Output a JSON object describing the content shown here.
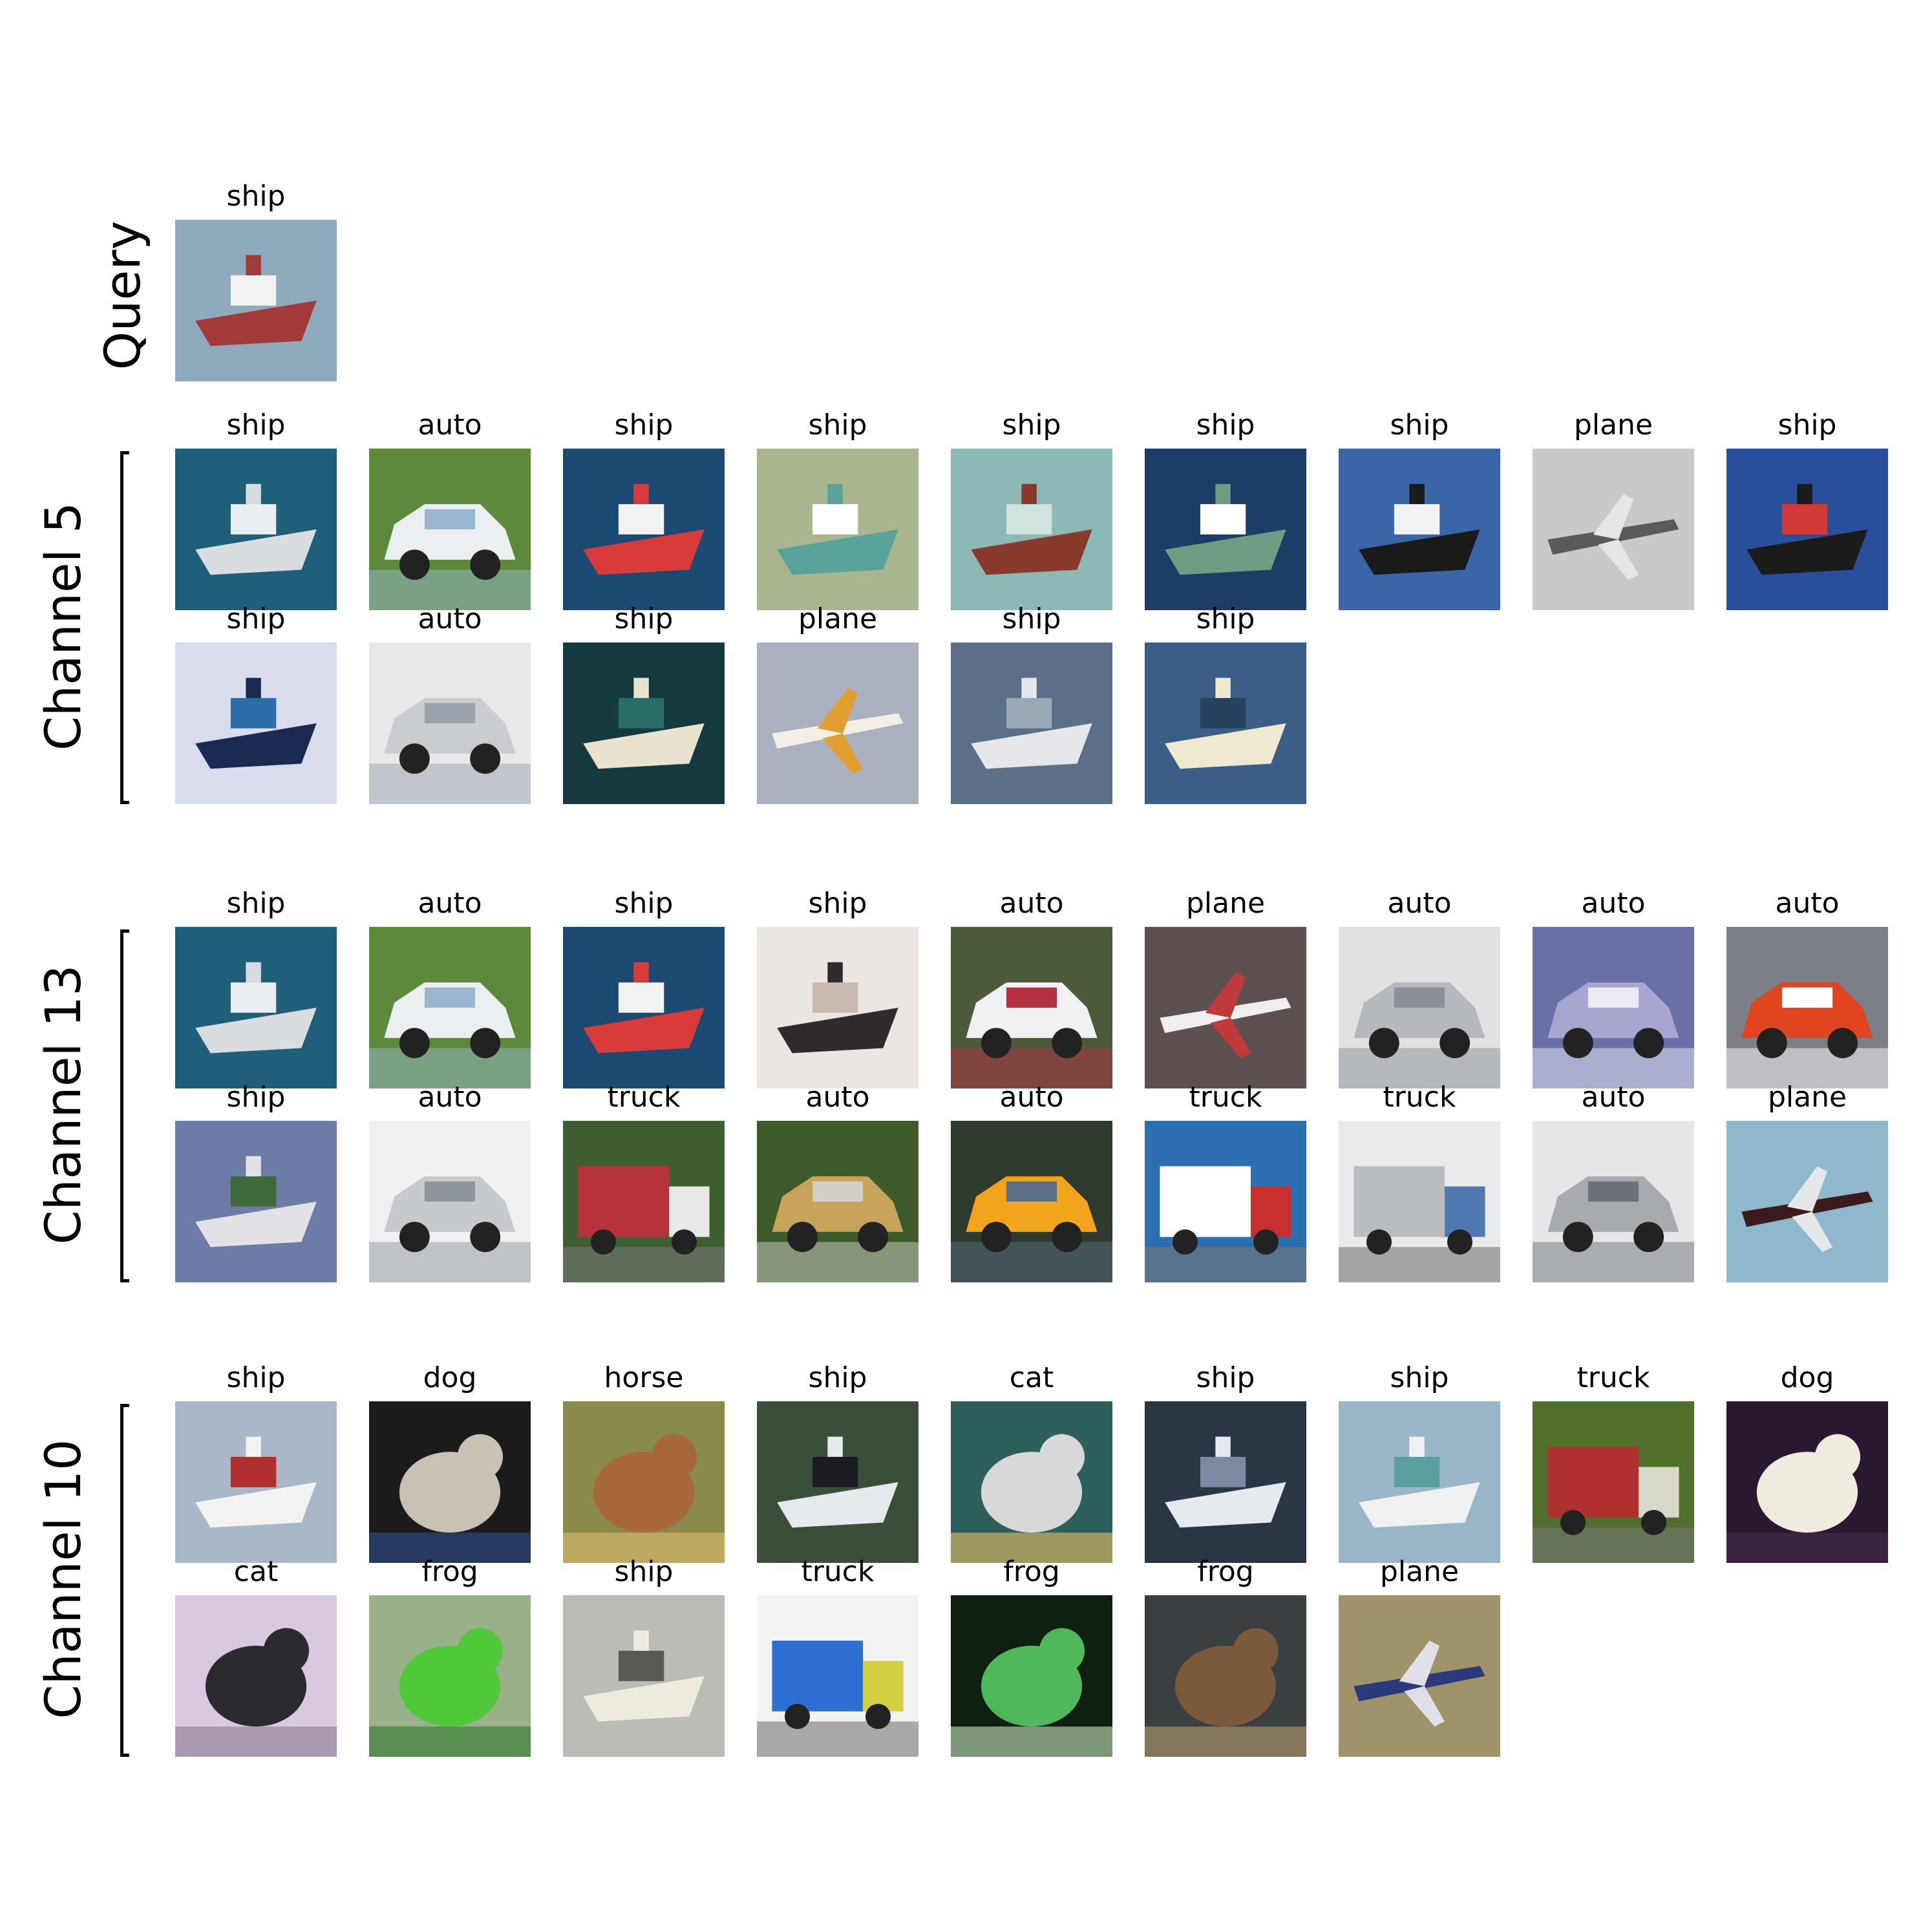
{
  "query": {
    "row_label": "Query",
    "image": {
      "label": "ship",
      "kind": "ship",
      "colors": [
        "#8fa9bd",
        "#a23a3a",
        "#f2f2f2"
      ]
    }
  },
  "groups": [
    {
      "row_label": "Channel 5",
      "images": [
        {
          "label": "ship",
          "kind": "ship",
          "colors": [
            "#1f5f7a",
            "#d9dde2",
            "#e8eef2"
          ]
        },
        {
          "label": "auto",
          "kind": "car",
          "colors": [
            "#5d8a3a",
            "#eceff1",
            "#9ab7cf"
          ]
        },
        {
          "label": "ship",
          "kind": "ship",
          "colors": [
            "#1d4a72",
            "#d93a3a",
            "#f2f2f2"
          ]
        },
        {
          "label": "ship",
          "kind": "ship",
          "colors": [
            "#a9b58e",
            "#5aa39a",
            "#ffffff"
          ]
        },
        {
          "label": "ship",
          "kind": "ship",
          "colors": [
            "#8cb9b5",
            "#8a3a2a",
            "#cfe3df"
          ]
        },
        {
          "label": "ship",
          "kind": "ship",
          "colors": [
            "#1c3d66",
            "#6f9c82",
            "#ffffff"
          ]
        },
        {
          "label": "ship",
          "kind": "ship",
          "colors": [
            "#3a66a8",
            "#1a1a1a",
            "#f2f2f2"
          ]
        },
        {
          "label": "plane",
          "kind": "plane",
          "colors": [
            "#c9c9c9",
            "#5a5a5a",
            "#e6e6e6"
          ]
        },
        {
          "label": "ship",
          "kind": "ship",
          "colors": [
            "#2a4f9a",
            "#1b1b1b",
            "#d23a3a"
          ]
        },
        {
          "label": "ship",
          "kind": "ship",
          "colors": [
            "#d9dcec",
            "#1b2a50",
            "#2f6da8"
          ]
        },
        {
          "label": "auto",
          "kind": "car",
          "colors": [
            "#e6e8ea",
            "#c9ccd0",
            "#9aa3ab"
          ]
        },
        {
          "label": "ship",
          "kind": "ship",
          "colors": [
            "#143a40",
            "#e8e2cf",
            "#2a6c6a"
          ]
        },
        {
          "label": "plane",
          "kind": "plane",
          "colors": [
            "#aab0bf",
            "#f2f0e6",
            "#e0a030"
          ]
        },
        {
          "label": "ship",
          "kind": "ship",
          "colors": [
            "#5c6f88",
            "#e5e7ea",
            "#9aa9b8"
          ]
        },
        {
          "label": "ship",
          "kind": "ship",
          "colors": [
            "#3b5e86",
            "#efe9cf",
            "#26425e"
          ]
        }
      ]
    },
    {
      "row_label": "Channel 13",
      "images": [
        {
          "label": "ship",
          "kind": "ship",
          "colors": [
            "#1f5f7a",
            "#d9dde2",
            "#e8eef2"
          ]
        },
        {
          "label": "auto",
          "kind": "car",
          "colors": [
            "#5d8a3a",
            "#eceff1",
            "#9ab7cf"
          ]
        },
        {
          "label": "ship",
          "kind": "ship",
          "colors": [
            "#1d4a72",
            "#d93a3a",
            "#f2f2f2"
          ]
        },
        {
          "label": "ship",
          "kind": "ship",
          "colors": [
            "#ece6e2",
            "#2f2a2c",
            "#c9b9b0"
          ]
        },
        {
          "label": "auto",
          "kind": "car",
          "colors": [
            "#4c5a3c",
            "#f1f1f4",
            "#b23040"
          ]
        },
        {
          "label": "plane",
          "kind": "plane",
          "colors": [
            "#5c5050",
            "#f0eeee",
            "#c03a3a"
          ]
        },
        {
          "label": "auto",
          "kind": "car",
          "colors": [
            "#dfe1e3",
            "#b5b9bd",
            "#8c9096"
          ]
        },
        {
          "label": "auto",
          "kind": "car",
          "colors": [
            "#6a6fa8",
            "#a7a6d0",
            "#ecebf3"
          ]
        },
        {
          "label": "auto",
          "kind": "car",
          "colors": [
            "#7b7f86",
            "#e0451f",
            "#ffffff"
          ]
        },
        {
          "label": "ship",
          "kind": "ship",
          "colors": [
            "#6d7ca6",
            "#e3e1e6",
            "#3d6a3c"
          ]
        },
        {
          "label": "auto",
          "kind": "car",
          "colors": [
            "#eef0f2",
            "#c6cacf",
            "#8f959c"
          ]
        },
        {
          "label": "truck",
          "kind": "truck",
          "colors": [
            "#3f5f33",
            "#b8323a",
            "#e9e9e9"
          ]
        },
        {
          "label": "auto",
          "kind": "car",
          "colors": [
            "#3d5a2a",
            "#c8a35a",
            "#d2cfc8"
          ]
        },
        {
          "label": "auto",
          "kind": "car",
          "colors": [
            "#2d3a2d",
            "#f2a41c",
            "#5c6f86"
          ]
        },
        {
          "label": "truck",
          "kind": "truck",
          "colors": [
            "#2c6fb0",
            "#ffffff",
            "#c83030"
          ]
        },
        {
          "label": "truck",
          "kind": "truck",
          "colors": [
            "#e8eaec",
            "#b9bdc2",
            "#4f78b0"
          ]
        },
        {
          "label": "auto",
          "kind": "car",
          "colors": [
            "#e4e6e8",
            "#a7abb0",
            "#6d7177"
          ]
        },
        {
          "label": "plane",
          "kind": "plane",
          "colors": [
            "#8fb8cc",
            "#3a1a1c",
            "#e5e8ea"
          ]
        }
      ]
    },
    {
      "row_label": "Channel 10",
      "images": [
        {
          "label": "ship",
          "kind": "ship",
          "colors": [
            "#a9b8c8",
            "#f2f2f2",
            "#b03030"
          ]
        },
        {
          "label": "dog",
          "kind": "animal",
          "colors": [
            "#1b1b1b",
            "#c9c1b3",
            "#2f4f8f"
          ]
        },
        {
          "label": "horse",
          "kind": "animal",
          "colors": [
            "#8a8a4a",
            "#a8683a",
            "#e0c070"
          ]
        },
        {
          "label": "ship",
          "kind": "ship",
          "colors": [
            "#3a4f3a",
            "#e6e9ee",
            "#1b1b22"
          ]
        },
        {
          "label": "cat",
          "kind": "animal",
          "colors": [
            "#2f5f5a",
            "#d8d8d8",
            "#e8c060"
          ]
        },
        {
          "label": "ship",
          "kind": "ship",
          "colors": [
            "#2a3545",
            "#e6e9ee",
            "#7a8aa0"
          ]
        },
        {
          "label": "ship",
          "kind": "ship",
          "colors": [
            "#9ab5c8",
            "#f0f0f0",
            "#5aa0a0"
          ]
        },
        {
          "label": "truck",
          "kind": "truck",
          "colors": [
            "#4f6f2a",
            "#b03030",
            "#d9d9c9"
          ]
        },
        {
          "label": "dog",
          "kind": "animal",
          "colors": [
            "#2a1730",
            "#f0ebe0",
            "#4a2a50"
          ]
        },
        {
          "label": "cat",
          "kind": "animal",
          "colors": [
            "#d9c9e0",
            "#2a2a2f",
            "#8a7a90"
          ]
        },
        {
          "label": "frog",
          "kind": "animal",
          "colors": [
            "#9ab08a",
            "#4fc83a",
            "#2f7a2a"
          ]
        },
        {
          "label": "ship",
          "kind": "ship",
          "colors": [
            "#b9bdb5",
            "#eeeae0",
            "#5a5a55"
          ]
        },
        {
          "label": "truck",
          "kind": "truck",
          "colors": [
            "#f2f2f2",
            "#2c6fd0",
            "#d2d040"
          ]
        },
        {
          "label": "frog",
          "kind": "animal",
          "colors": [
            "#0f1f10",
            "#4fb85a",
            "#c9e8c0"
          ]
        },
        {
          "label": "frog",
          "kind": "animal",
          "colors": [
            "#3a3f42",
            "#7a5a3a",
            "#b89a6a"
          ]
        },
        {
          "label": "plane",
          "kind": "plane",
          "colors": [
            "#a0936a",
            "#2a3a7a",
            "#e0e0e8"
          ]
        }
      ]
    }
  ]
}
